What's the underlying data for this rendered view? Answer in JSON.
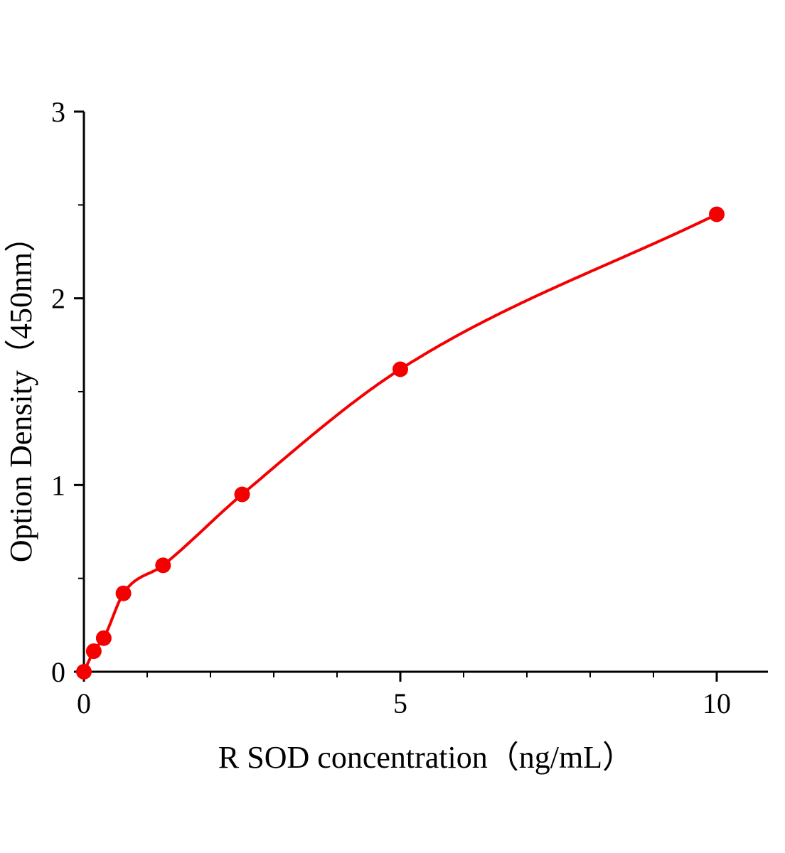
{
  "figure": {
    "background": "#ffffff",
    "text_color": "#000000"
  },
  "chart_data": {
    "type": "scatter",
    "title": "",
    "xlabel": "R SOD concentration（ng/mL）",
    "ylabel": "Option Density（450nm）",
    "x": [
      0,
      0.156,
      0.313,
      0.625,
      1.25,
      2.5,
      5,
      10
    ],
    "y": [
      0,
      0.11,
      0.18,
      0.42,
      0.57,
      0.95,
      1.62,
      2.45
    ],
    "xlim": [
      0,
      10.8
    ],
    "ylim": [
      0,
      3
    ],
    "x_major_ticks": [
      0,
      5,
      10
    ],
    "x_minor_step": 1,
    "y_major_ticks": [
      0,
      1,
      2,
      3
    ],
    "y_minor_step": 0.5,
    "grid": false,
    "legend": null,
    "marker": "circle",
    "curve": "smooth-fit-through-points",
    "point_color": "#f40000",
    "line_color": "#f40000",
    "axis_color": "#000000"
  }
}
